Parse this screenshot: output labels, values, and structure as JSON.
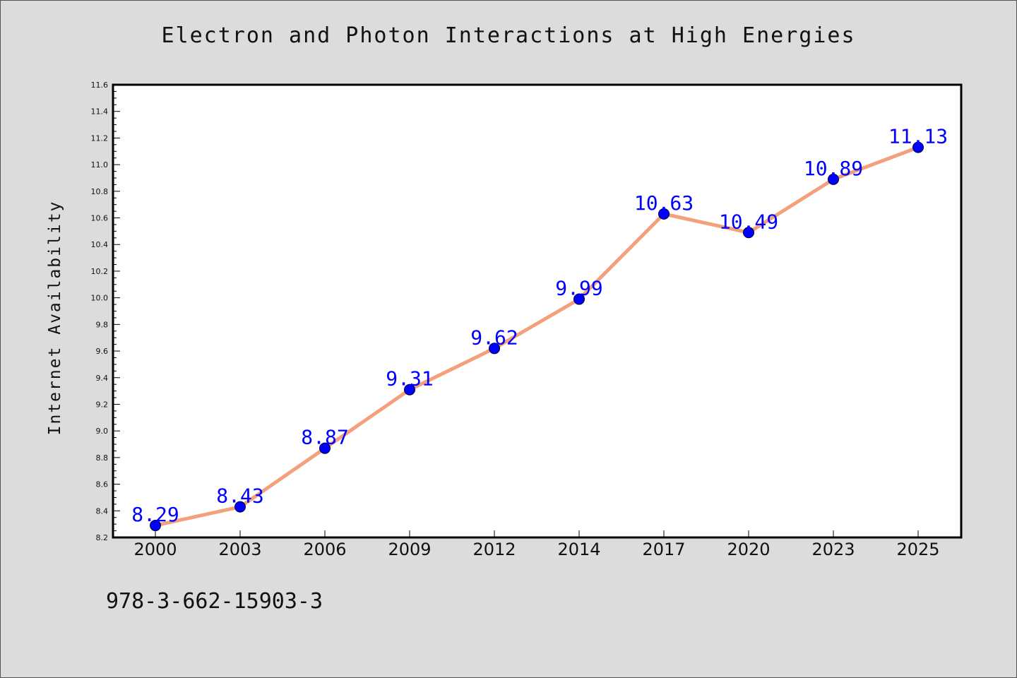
{
  "chart_data": {
    "type": "line",
    "title": "Electron and Photon Interactions at High Energies",
    "xlabel": "",
    "ylabel": "Internet Availability",
    "categories": [
      "2000",
      "2003",
      "2006",
      "2009",
      "2012",
      "2014",
      "2017",
      "2020",
      "2023",
      "2025"
    ],
    "series": [
      {
        "values": [
          8.29,
          8.43,
          8.87,
          9.31,
          9.62,
          9.99,
          10.63,
          10.49,
          10.89,
          11.13
        ],
        "data_labels": [
          "8.29",
          "8.43",
          "8.87",
          "9.31",
          "9.62",
          "9.99",
          "10.63",
          "10.49",
          "10.89",
          "11.13"
        ]
      }
    ],
    "ylim": [
      8.2,
      11.6
    ],
    "yticks": [
      "8.2",
      "8.4",
      "8.6",
      "8.8",
      "9.0",
      "9.2",
      "9.4",
      "9.6",
      "9.8",
      "10.0",
      "10.2",
      "10.4",
      "10.6",
      "10.8",
      "11.0",
      "11.2",
      "11.4",
      "11.6"
    ],
    "grid": false,
    "legend": "none",
    "colors": {
      "line": "#f4a07c",
      "marker": "#0000ff",
      "data_label": "#0000ff",
      "background": "#dcdcdc",
      "plot_area": "#ffffff"
    }
  },
  "footer": {
    "code": "978-3-662-15903-3"
  }
}
